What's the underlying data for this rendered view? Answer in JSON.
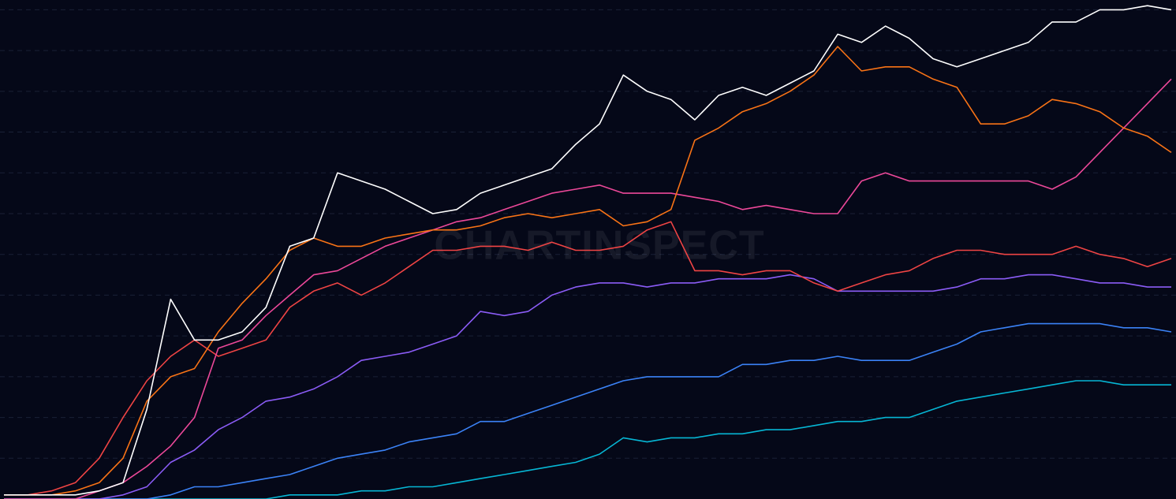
{
  "chart_data": {
    "type": "line",
    "watermark": "CHARTINSPECT",
    "background": "#050818",
    "categories": [
      null,
      null,
      null,
      null,
      null,
      null,
      null,
      null,
      null,
      null,
      null,
      null,
      null,
      null,
      null,
      null,
      null,
      null,
      null,
      null,
      null,
      null,
      null,
      null,
      null,
      null,
      null,
      null,
      null,
      null,
      null,
      null,
      null,
      null,
      null,
      null,
      null,
      null,
      null,
      null,
      null,
      null,
      null,
      null,
      null,
      null,
      null,
      null,
      null,
      null
    ],
    "ylim": [
      0,
      12.24
    ],
    "yticks": [
      1,
      2,
      3,
      4,
      5,
      6,
      7,
      8,
      9,
      10,
      11,
      12
    ],
    "grid": true,
    "series": [
      {
        "color": "#06b6d4",
        "values": [
          0,
          0,
          0,
          0,
          0,
          0,
          0,
          0,
          0,
          0,
          0,
          0,
          0.1,
          0.1,
          0.1,
          0.2,
          0.2,
          0.3,
          0.3,
          0.4,
          0.5,
          0.6,
          0.7,
          0.8,
          0.9,
          1.1,
          1.5,
          1.4,
          1.5,
          1.5,
          1.6,
          1.6,
          1.7,
          1.7,
          1.8,
          1.9,
          1.9,
          2.0,
          2.0,
          2.2,
          2.4,
          2.5,
          2.6,
          2.7,
          2.8,
          2.9,
          2.9,
          2.8,
          2.8,
          2.8
        ]
      },
      {
        "color": "#3b82f6",
        "values": [
          0,
          0,
          0,
          0,
          0,
          0,
          0,
          0.1,
          0.3,
          0.3,
          0.4,
          0.5,
          0.6,
          0.8,
          1.0,
          1.1,
          1.2,
          1.4,
          1.5,
          1.6,
          1.9,
          1.9,
          2.1,
          2.3,
          2.5,
          2.7,
          2.9,
          3.0,
          3.0,
          3.0,
          3.0,
          3.3,
          3.3,
          3.4,
          3.4,
          3.5,
          3.4,
          3.4,
          3.4,
          3.6,
          3.8,
          4.1,
          4.2,
          4.3,
          4.3,
          4.3,
          4.3,
          4.2,
          4.2,
          4.1
        ]
      },
      {
        "color": "#8b5cf6",
        "values": [
          0,
          0,
          0,
          0,
          0,
          0.1,
          0.3,
          0.9,
          1.2,
          1.7,
          2.0,
          2.4,
          2.5,
          2.7,
          3.0,
          3.4,
          3.5,
          3.6,
          3.8,
          4.0,
          4.6,
          4.5,
          4.6,
          5.0,
          5.2,
          5.3,
          5.3,
          5.2,
          5.3,
          5.3,
          5.4,
          5.4,
          5.4,
          5.5,
          5.4,
          5.1,
          5.1,
          5.1,
          5.1,
          5.1,
          5.2,
          5.4,
          5.4,
          5.5,
          5.5,
          5.4,
          5.3,
          5.3,
          5.2,
          5.2
        ]
      },
      {
        "color": "#ef4444",
        "values": [
          0.1,
          0.1,
          0.2,
          0.4,
          1.0,
          2.0,
          2.9,
          3.5,
          3.9,
          3.5,
          3.7,
          3.9,
          4.7,
          5.1,
          5.3,
          5.0,
          5.3,
          5.7,
          6.1,
          6.1,
          6.2,
          6.2,
          6.1,
          6.3,
          6.1,
          6.1,
          6.2,
          6.6,
          6.8,
          5.6,
          5.6,
          5.5,
          5.6,
          5.6,
          5.3,
          5.1,
          5.3,
          5.5,
          5.6,
          5.9,
          6.1,
          6.1,
          6.0,
          6.0,
          6.0,
          6.2,
          6.0,
          5.9,
          5.7,
          5.9
        ]
      },
      {
        "color": "#ec4899",
        "values": [
          0,
          0,
          0,
          0,
          0.2,
          0.4,
          0.8,
          1.3,
          2.0,
          3.7,
          3.9,
          4.5,
          5.0,
          5.5,
          5.6,
          5.9,
          6.2,
          6.4,
          6.6,
          6.8,
          6.9,
          7.1,
          7.3,
          7.5,
          7.6,
          7.7,
          7.5,
          7.5,
          7.5,
          7.4,
          7.3,
          7.1,
          7.2,
          7.1,
          7.0,
          7.0,
          7.8,
          8.0,
          7.8,
          7.8,
          7.8,
          7.8,
          7.8,
          7.8,
          7.6,
          7.9,
          8.5,
          9.1,
          9.7,
          10.3
        ]
      },
      {
        "color": "#f97316",
        "values": [
          0.1,
          0.1,
          0.1,
          0.2,
          0.4,
          1.0,
          2.4,
          3.0,
          3.2,
          4.1,
          4.8,
          5.4,
          6.1,
          6.4,
          6.2,
          6.2,
          6.4,
          6.5,
          6.6,
          6.6,
          6.7,
          6.9,
          7.0,
          6.9,
          7.0,
          7.1,
          6.7,
          6.8,
          7.1,
          8.8,
          9.1,
          9.5,
          9.7,
          10.0,
          10.4,
          11.1,
          10.5,
          10.6,
          10.6,
          10.3,
          10.1,
          9.2,
          9.2,
          9.4,
          9.8,
          9.7,
          9.5,
          9.1,
          8.9,
          8.5
        ]
      },
      {
        "color": "#ffffff",
        "values": [
          0.1,
          0.1,
          0.1,
          0.1,
          0.2,
          0.4,
          2.2,
          4.9,
          3.9,
          3.9,
          4.1,
          4.7,
          6.2,
          6.4,
          8.0,
          7.8,
          7.6,
          7.3,
          7.0,
          7.1,
          7.5,
          7.7,
          7.9,
          8.1,
          8.7,
          9.2,
          10.4,
          10.0,
          9.8,
          9.3,
          9.9,
          10.1,
          9.9,
          10.2,
          10.5,
          11.4,
          11.2,
          11.6,
          11.3,
          10.8,
          10.6,
          10.8,
          11.0,
          11.2,
          11.7,
          11.7,
          12.0,
          12.0,
          12.1,
          12.0
        ]
      }
    ]
  }
}
